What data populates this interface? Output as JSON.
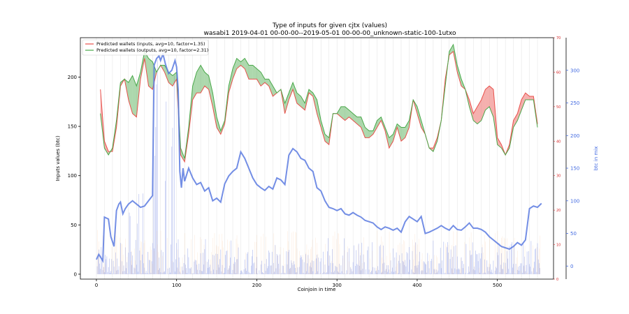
{
  "chart_data": {
    "type": "line",
    "title": "Type of inputs for given cjtx (values)",
    "subtitle": "wasabi1 2019-04-01 00-00-00--2019-05-01 00-00-00_unknown-static-100-1utxo",
    "xlabel": "Coinjoin in time",
    "ylabel": "Inputs values (btc)",
    "y2label": "",
    "y3label": "btc in mix",
    "xlim": [
      -20,
      570
    ],
    "ylim": [
      -5,
      240
    ],
    "y2lim": [
      0,
      70
    ],
    "y3lim": [
      -20,
      350
    ],
    "x_ticks": [
      0,
      100,
      200,
      300,
      400,
      500
    ],
    "y_ticks": [
      0,
      50,
      100,
      150,
      200
    ],
    "y2_ticks": [
      0,
      10,
      20,
      30,
      40,
      50,
      60,
      70
    ],
    "y3_ticks": [
      0,
      50,
      100,
      150,
      200,
      250,
      300
    ],
    "legend_position": "top-left",
    "series": [
      {
        "name": "Predicted wallets (inputs, avg=10, factor=1.35)",
        "color": "#e8504b",
        "axis": "y2",
        "x": [
          5,
          10,
          15,
          20,
          25,
          30,
          35,
          40,
          45,
          50,
          55,
          60,
          65,
          70,
          75,
          80,
          85,
          90,
          95,
          100,
          105,
          110,
          115,
          120,
          125,
          130,
          135,
          140,
          145,
          150,
          155,
          160,
          165,
          170,
          175,
          180,
          185,
          190,
          195,
          200,
          205,
          210,
          215,
          220,
          225,
          230,
          235,
          240,
          245,
          250,
          255,
          260,
          265,
          270,
          275,
          280,
          285,
          290,
          295,
          300,
          305,
          310,
          315,
          320,
          325,
          330,
          335,
          340,
          345,
          350,
          355,
          360,
          365,
          370,
          375,
          380,
          385,
          390,
          395,
          400,
          405,
          410,
          415,
          420,
          425,
          430,
          435,
          440,
          445,
          450,
          455,
          460,
          465,
          470,
          475,
          480,
          485,
          490,
          495,
          500,
          505,
          510,
          515,
          520,
          525,
          530,
          535,
          540,
          545,
          550
        ],
        "values": [
          55,
          40,
          37,
          37,
          44,
          56,
          58,
          52,
          48,
          47,
          58,
          64,
          56,
          55,
          60,
          62,
          60,
          57,
          56,
          58,
          36,
          34,
          42,
          52,
          54,
          54,
          56,
          55,
          50,
          44,
          42,
          45,
          54,
          58,
          61,
          62,
          61,
          58,
          58,
          58,
          56,
          57,
          56,
          53,
          54,
          55,
          48,
          52,
          55,
          51,
          50,
          49,
          54,
          53,
          48,
          44,
          40,
          39,
          48,
          48,
          47,
          46,
          47,
          46,
          45,
          44,
          41,
          41,
          42,
          44,
          46,
          43,
          38,
          40,
          44,
          40,
          41,
          44,
          52,
          48,
          44,
          42,
          38,
          38,
          41,
          46,
          58,
          65,
          66,
          60,
          56,
          55,
          52,
          48,
          50,
          52,
          55,
          56,
          55,
          41,
          39,
          36,
          39,
          46,
          48,
          52,
          54,
          53,
          53,
          45
        ]
      },
      {
        "name": "Predicted wallets (outputs, avg=10, factor=2.31)",
        "color": "#4aa84a",
        "axis": "y2",
        "x": [
          5,
          10,
          15,
          20,
          25,
          30,
          35,
          40,
          45,
          50,
          55,
          60,
          65,
          70,
          75,
          80,
          85,
          90,
          95,
          100,
          105,
          110,
          115,
          120,
          125,
          130,
          135,
          140,
          145,
          150,
          155,
          160,
          165,
          170,
          175,
          180,
          185,
          190,
          195,
          200,
          205,
          210,
          215,
          220,
          225,
          230,
          235,
          240,
          245,
          250,
          255,
          260,
          265,
          270,
          275,
          280,
          285,
          290,
          295,
          300,
          305,
          310,
          315,
          320,
          325,
          330,
          335,
          340,
          345,
          350,
          355,
          360,
          365,
          370,
          375,
          380,
          385,
          390,
          395,
          400,
          405,
          410,
          415,
          420,
          425,
          430,
          435,
          440,
          445,
          450,
          455,
          460,
          465,
          470,
          475,
          480,
          485,
          490,
          495,
          500,
          505,
          510,
          515,
          520,
          525,
          530,
          535,
          540,
          545,
          550
        ],
        "values": [
          48,
          38,
          36,
          38,
          46,
          57,
          58,
          57,
          59,
          56,
          60,
          66,
          64,
          63,
          60,
          62,
          62,
          60,
          59,
          60,
          38,
          35,
          44,
          56,
          60,
          62,
          60,
          59,
          54,
          47,
          43,
          46,
          56,
          61,
          64,
          63,
          64,
          62,
          62,
          61,
          60,
          58,
          58,
          56,
          54,
          55,
          51,
          54,
          57,
          54,
          53,
          51,
          55,
          54,
          52,
          46,
          42,
          41,
          48,
          48,
          50,
          50,
          49,
          48,
          47,
          47,
          44,
          43,
          43,
          46,
          47,
          44,
          41,
          42,
          45,
          44,
          44,
          46,
          52,
          50,
          46,
          42,
          38,
          37,
          40,
          46,
          56,
          66,
          68,
          62,
          58,
          55,
          50,
          46,
          45,
          46,
          49,
          50,
          47,
          39,
          38,
          36,
          38,
          44,
          46,
          49,
          52,
          52,
          52,
          44
        ]
      },
      {
        "name": "btc in mix",
        "color": "#5a7ae0",
        "axis": "y3",
        "x": [
          0,
          3,
          6,
          8,
          10,
          15,
          18,
          22,
          25,
          28,
          30,
          33,
          36,
          40,
          45,
          50,
          55,
          60,
          65,
          70,
          72,
          75,
          78,
          80,
          83,
          86,
          90,
          94,
          98,
          100,
          102,
          104,
          106,
          108,
          110,
          115,
          120,
          125,
          130,
          135,
          140,
          145,
          150,
          155,
          160,
          165,
          170,
          175,
          180,
          185,
          190,
          195,
          200,
          205,
          210,
          215,
          220,
          225,
          230,
          235,
          240,
          245,
          250,
          255,
          260,
          265,
          270,
          275,
          280,
          285,
          290,
          295,
          300,
          305,
          310,
          315,
          320,
          325,
          330,
          335,
          340,
          345,
          350,
          355,
          360,
          365,
          370,
          375,
          380,
          385,
          390,
          395,
          400,
          405,
          410,
          415,
          420,
          425,
          430,
          435,
          440,
          445,
          450,
          455,
          460,
          465,
          470,
          475,
          480,
          485,
          490,
          495,
          500,
          505,
          510,
          515,
          520,
          525,
          530,
          535,
          540,
          545,
          550,
          555
        ],
        "values": [
          10,
          18,
          12,
          8,
          75,
          72,
          45,
          30,
          85,
          95,
          98,
          80,
          88,
          95,
          100,
          95,
          90,
          92,
          100,
          108,
          308,
          318,
          322,
          315,
          325,
          310,
          295,
          300,
          315,
          305,
          270,
          145,
          120,
          150,
          130,
          150,
          135,
          125,
          128,
          115,
          120,
          100,
          104,
          98,
          126,
          138,
          145,
          150,
          175,
          165,
          150,
          135,
          125,
          120,
          116,
          122,
          118,
          135,
          132,
          125,
          170,
          180,
          175,
          165,
          162,
          150,
          145,
          120,
          115,
          100,
          90,
          88,
          85,
          88,
          80,
          78,
          82,
          78,
          75,
          70,
          68,
          66,
          60,
          56,
          60,
          58,
          55,
          58,
          52,
          68,
          76,
          72,
          68,
          76,
          50,
          52,
          55,
          58,
          62,
          58,
          55,
          62,
          56,
          55,
          60,
          66,
          58,
          58,
          56,
          52,
          45,
          40,
          35,
          30,
          28,
          26,
          30,
          36,
          32,
          40,
          88,
          92,
          90,
          96
        ]
      }
    ]
  }
}
